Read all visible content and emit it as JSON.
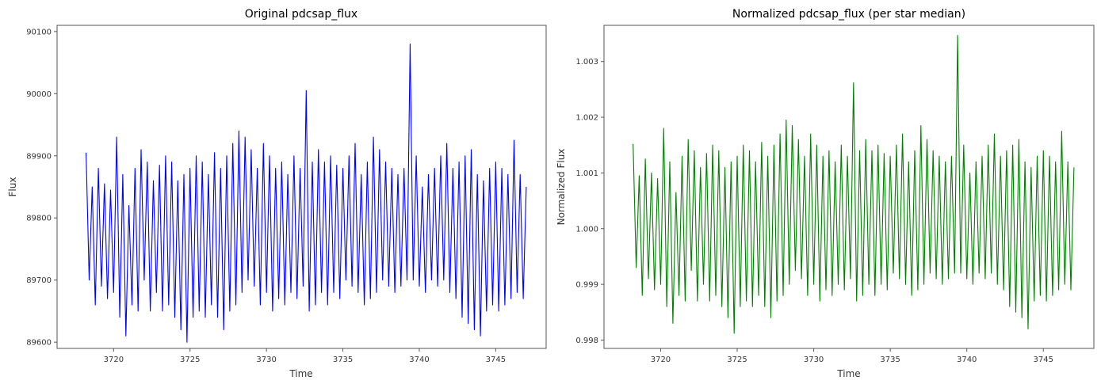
{
  "chart_data": [
    {
      "type": "line",
      "title": "Original pdcsap_flux",
      "xlabel": "Time",
      "ylabel": "Flux",
      "xlim": [
        3716.3,
        3748.3
      ],
      "ylim": [
        89590,
        90110
      ],
      "xticks": [
        3720,
        3725,
        3730,
        3735,
        3740,
        3745
      ],
      "yticks": [
        89600,
        89700,
        89800,
        89900,
        90000,
        90100
      ],
      "grid": false,
      "legend": "none",
      "color": "#0000ff",
      "series": [
        {
          "x": [
            3718.2,
            3718.4,
            3718.6,
            3718.8,
            3719.0,
            3719.2,
            3719.4,
            3719.6,
            3719.8,
            3720.0,
            3720.2,
            3720.4,
            3720.6,
            3720.8,
            3721.0,
            3721.2,
            3721.4,
            3721.6,
            3721.8,
            3722.0,
            3722.2,
            3722.4,
            3722.6,
            3722.8,
            3723.0,
            3723.2,
            3723.4,
            3723.6,
            3723.8,
            3724.0,
            3724.2,
            3724.4,
            3724.6,
            3724.8,
            3725.0,
            3725.2,
            3725.4,
            3725.6,
            3725.8,
            3726.0,
            3726.2,
            3726.4,
            3726.6,
            3726.8,
            3727.0,
            3727.2,
            3727.4,
            3727.6,
            3727.8,
            3728.0,
            3728.2,
            3728.4,
            3728.6,
            3728.8,
            3729.0,
            3729.2,
            3729.4,
            3729.6,
            3729.8,
            3730.0,
            3730.2,
            3730.4,
            3730.6,
            3730.8,
            3731.0,
            3731.2,
            3731.4,
            3731.6,
            3731.8,
            3732.0,
            3732.2,
            3732.4,
            3732.6,
            3732.8,
            3733.0,
            3733.2,
            3733.4,
            3733.6,
            3733.8,
            3734.0,
            3734.2,
            3734.4,
            3734.6,
            3734.8,
            3735.0,
            3735.2,
            3735.4,
            3735.6,
            3735.8,
            3736.0,
            3736.2,
            3736.4,
            3736.6,
            3736.8,
            3737.0,
            3737.2,
            3737.4,
            3737.6,
            3737.8,
            3738.0,
            3738.2,
            3738.4,
            3738.6,
            3738.8,
            3739.0,
            3739.2,
            3739.4,
            3739.6,
            3739.8,
            3740.0,
            3740.2,
            3740.4,
            3740.6,
            3740.8,
            3741.0,
            3741.2,
            3741.4,
            3741.6,
            3741.8,
            3742.0,
            3742.2,
            3742.4,
            3742.6,
            3742.8,
            3743.0,
            3743.2,
            3743.4,
            3743.6,
            3743.8,
            3744.0,
            3744.2,
            3744.4,
            3744.6,
            3744.8,
            3745.0,
            3745.2,
            3745.4,
            3745.6,
            3745.8,
            3746.0,
            3746.2,
            3746.4,
            3746.6,
            3746.8,
            3747.0
          ],
          "y": [
            89905,
            89700,
            89850,
            89660,
            89880,
            89690,
            89855,
            89670,
            89845,
            89680,
            89930,
            89640,
            89870,
            89610,
            89820,
            89660,
            89880,
            89650,
            89910,
            89700,
            89890,
            89650,
            89860,
            89680,
            89885,
            89650,
            89900,
            89660,
            89890,
            89640,
            89860,
            89620,
            89870,
            89600,
            89880,
            89640,
            89900,
            89650,
            89890,
            89640,
            89870,
            89660,
            89905,
            89640,
            89880,
            89620,
            89900,
            89650,
            89920,
            89660,
            89940,
            89680,
            89930,
            89700,
            89910,
            89690,
            89880,
            89660,
            89920,
            89680,
            89900,
            89650,
            89880,
            89670,
            89890,
            89660,
            89870,
            89680,
            89900,
            89670,
            89880,
            89690,
            90005,
            89650,
            89890,
            89660,
            89910,
            89680,
            89890,
            89660,
            89900,
            89680,
            89885,
            89670,
            89880,
            89700,
            89900,
            89690,
            89920,
            89680,
            89870,
            89660,
            89890,
            89670,
            89930,
            89680,
            89910,
            89700,
            89890,
            89690,
            89880,
            89680,
            89870,
            89690,
            89880,
            89700,
            90080,
            89700,
            89900,
            89690,
            89850,
            89680,
            89870,
            89700,
            89880,
            89690,
            89900,
            89700,
            89920,
            89680,
            89880,
            89670,
            89890,
            89640,
            89900,
            89630,
            89910,
            89620,
            89870,
            89610,
            89860,
            89650,
            89880,
            89660,
            89890,
            89650,
            89880,
            89660,
            89870,
            89670,
            89925,
            89680,
            89870,
            89670,
            89850
          ]
        }
      ]
    },
    {
      "type": "line",
      "title": "Normalized pdcsap_flux (per star median)",
      "xlabel": "Time",
      "ylabel": "Normalized Flux",
      "xlim": [
        3716.3,
        3748.3
      ],
      "ylim": [
        0.99785,
        1.00365
      ],
      "xticks": [
        3720,
        3725,
        3730,
        3735,
        3740,
        3745
      ],
      "yticks": [
        0.998,
        0.999,
        1.0,
        1.001,
        1.002,
        1.003
      ],
      "grid": false,
      "legend": "none",
      "color": "#008000",
      "series": [
        {
          "x": [
            3718.2,
            3718.4,
            3718.6,
            3718.8,
            3719.0,
            3719.2,
            3719.4,
            3719.6,
            3719.8,
            3720.0,
            3720.2,
            3720.4,
            3720.6,
            3720.8,
            3721.0,
            3721.2,
            3721.4,
            3721.6,
            3721.8,
            3722.0,
            3722.2,
            3722.4,
            3722.6,
            3722.8,
            3723.0,
            3723.2,
            3723.4,
            3723.6,
            3723.8,
            3724.0,
            3724.2,
            3724.4,
            3724.6,
            3724.8,
            3725.0,
            3725.2,
            3725.4,
            3725.6,
            3725.8,
            3726.0,
            3726.2,
            3726.4,
            3726.6,
            3726.8,
            3727.0,
            3727.2,
            3727.4,
            3727.6,
            3727.8,
            3728.0,
            3728.2,
            3728.4,
            3728.6,
            3728.8,
            3729.0,
            3729.2,
            3729.4,
            3729.6,
            3729.8,
            3730.0,
            3730.2,
            3730.4,
            3730.6,
            3730.8,
            3731.0,
            3731.2,
            3731.4,
            3731.6,
            3731.8,
            3732.0,
            3732.2,
            3732.4,
            3732.6,
            3732.8,
            3733.0,
            3733.2,
            3733.4,
            3733.6,
            3733.8,
            3734.0,
            3734.2,
            3734.4,
            3734.6,
            3734.8,
            3735.0,
            3735.2,
            3735.4,
            3735.6,
            3735.8,
            3736.0,
            3736.2,
            3736.4,
            3736.6,
            3736.8,
            3737.0,
            3737.2,
            3737.4,
            3737.6,
            3737.8,
            3738.0,
            3738.2,
            3738.4,
            3738.6,
            3738.8,
            3739.0,
            3739.2,
            3739.4,
            3739.6,
            3739.8,
            3740.0,
            3740.2,
            3740.4,
            3740.6,
            3740.8,
            3741.0,
            3741.2,
            3741.4,
            3741.6,
            3741.8,
            3742.0,
            3742.2,
            3742.4,
            3742.6,
            3742.8,
            3743.0,
            3743.2,
            3743.4,
            3743.6,
            3743.8,
            3744.0,
            3744.2,
            3744.4,
            3744.6,
            3744.8,
            3745.0,
            3745.2,
            3745.4,
            3745.6,
            3745.8,
            3746.0,
            3746.2,
            3746.4,
            3746.6,
            3746.8,
            3747.0
          ],
          "y": [
            1.00152,
            0.9993,
            1.00095,
            0.9988,
            1.00125,
            0.9991,
            1.001,
            0.9989,
            1.0009,
            0.999,
            1.0018,
            0.9986,
            1.0012,
            0.9983,
            1.00065,
            0.9988,
            1.0013,
            0.9987,
            1.0016,
            0.99925,
            1.0014,
            0.9987,
            1.0011,
            0.999,
            1.00135,
            0.9987,
            1.0015,
            0.9988,
            1.0014,
            0.9986,
            1.0011,
            0.9984,
            1.0012,
            0.99812,
            1.0013,
            0.9986,
            1.0015,
            0.9987,
            1.0014,
            0.9986,
            1.0012,
            0.9988,
            1.00155,
            0.9986,
            1.0013,
            0.9984,
            1.0015,
            0.9987,
            1.0017,
            0.9988,
            1.00195,
            0.999,
            1.00185,
            0.99925,
            1.0016,
            0.9991,
            1.0013,
            0.9988,
            1.0017,
            0.999,
            1.0015,
            0.9987,
            1.0013,
            0.9989,
            1.0014,
            0.9988,
            1.0012,
            0.999,
            1.0015,
            0.9989,
            1.0013,
            0.9991,
            1.00262,
            0.9987,
            1.0014,
            0.9988,
            1.0016,
            0.999,
            1.0014,
            0.9988,
            1.0015,
            0.999,
            1.00135,
            0.9989,
            1.0013,
            0.9992,
            1.0015,
            0.9991,
            1.0017,
            0.999,
            1.0012,
            0.9988,
            1.0014,
            0.9989,
            1.00185,
            0.999,
            1.0016,
            0.9992,
            1.0014,
            0.9991,
            1.0013,
            0.999,
            1.0012,
            0.9991,
            1.0013,
            0.9992,
            1.00347,
            0.9992,
            1.0015,
            0.9991,
            1.001,
            0.999,
            1.0012,
            0.9992,
            1.0013,
            0.9991,
            1.0015,
            0.9992,
            1.0017,
            0.999,
            1.0013,
            0.9989,
            1.0014,
            0.9986,
            1.0015,
            0.9985,
            1.0016,
            0.9984,
            1.0012,
            0.9982,
            1.0011,
            0.9987,
            1.0013,
            0.9988,
            1.0014,
            0.9987,
            1.0013,
            0.9988,
            1.0012,
            0.9989,
            1.00175,
            0.999,
            1.0012,
            0.9989,
            1.0011
          ]
        }
      ]
    }
  ]
}
